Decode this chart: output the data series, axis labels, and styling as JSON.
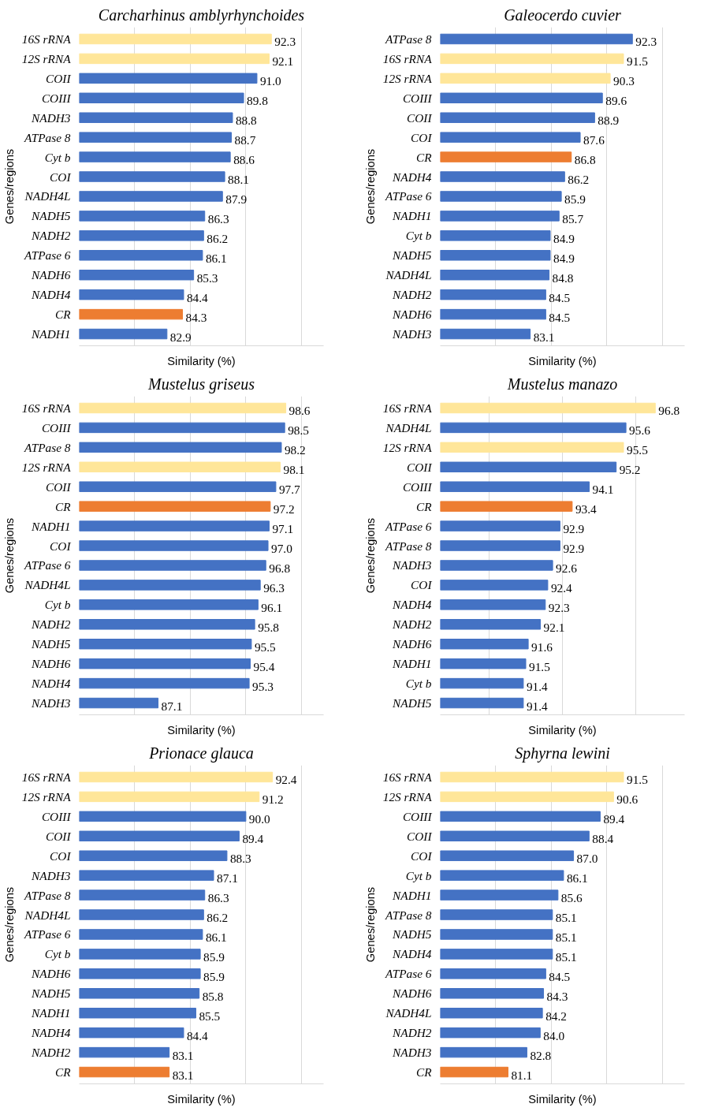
{
  "chart_data": [
    {
      "type": "bar",
      "orientation": "horizontal",
      "title": "Carcharhinus amblyrhynchoides",
      "xlabel": "Similarity (%)",
      "ylabel": "Genes/regions",
      "categories": [
        "16S rRNA",
        "12S rRNA",
        "COII",
        "COIII",
        "NADH3",
        "ATPase 8",
        "Cyt b",
        "COI",
        "NADH4L",
        "NADH5",
        "NADH2",
        "ATPase 6",
        "NADH6",
        "NADH4",
        "CR",
        "NADH1"
      ],
      "values": [
        92.3,
        92.1,
        91.0,
        89.8,
        88.8,
        88.7,
        88.6,
        88.1,
        87.9,
        86.3,
        86.2,
        86.1,
        85.3,
        84.4,
        84.3,
        82.9
      ],
      "value_labels": [
        "92.3",
        "92.1",
        "91.0",
        "89.8",
        "88.8",
        "88.7",
        "88.6",
        "88.1",
        "87.9",
        "86.3",
        "86.2",
        "86.1",
        "85.3",
        "84.4",
        "84.3",
        "82.9"
      ],
      "colors": [
        "#ffe699",
        "#ffe699",
        "#4472c4",
        "#4472c4",
        "#4472c4",
        "#4472c4",
        "#4472c4",
        "#4472c4",
        "#4472c4",
        "#4472c4",
        "#4472c4",
        "#4472c4",
        "#4472c4",
        "#4472c4",
        "#ed7d31",
        "#4472c4"
      ],
      "xlim": [
        75,
        97
      ],
      "xticks": [
        {
          "value": 80,
          "label": null
        },
        {
          "value": 85,
          "label": null
        },
        {
          "value": 90,
          "label": null
        },
        {
          "value": 95,
          "label": null
        }
      ],
      "grid": "x",
      "tick_labels": "y"
    },
    {
      "type": "bar",
      "orientation": "horizontal",
      "title": "Galeocerdo cuvier",
      "xlabel": "Similarity (%)",
      "ylabel": "Genes/regions",
      "categories": [
        "ATPase 8",
        "16S rRNA",
        "12S rRNA",
        "COIII",
        "COII",
        "COI",
        "CR",
        "NADH4",
        "ATPase 6",
        "NADH1",
        "Cyt b",
        "NADH5",
        "NADH4L",
        "NADH2",
        "NADH6",
        "NADH3"
      ],
      "values": [
        92.3,
        91.5,
        90.3,
        89.6,
        88.9,
        87.6,
        86.8,
        86.2,
        85.9,
        85.7,
        84.9,
        84.9,
        84.8,
        84.5,
        84.5,
        83.1
      ],
      "value_labels": [
        "92.3",
        "91.5",
        "90.3",
        "89.6",
        "88.9",
        "87.6",
        "86.8",
        "86.2",
        "85.9",
        "85.7",
        "84.9",
        "84.9",
        "84.8",
        "84.5",
        "84.5",
        "83.1"
      ],
      "colors": [
        "#4472c4",
        "#ffe699",
        "#ffe699",
        "#4472c4",
        "#4472c4",
        "#4472c4",
        "#ed7d31",
        "#4472c4",
        "#4472c4",
        "#4472c4",
        "#4472c4",
        "#4472c4",
        "#4472c4",
        "#4472c4",
        "#4472c4",
        "#4472c4"
      ],
      "xlim": [
        75,
        97
      ],
      "xticks": [
        {
          "value": 80,
          "label": null
        },
        {
          "value": 85,
          "label": null
        },
        {
          "value": 90,
          "label": null
        },
        {
          "value": 95,
          "label": null
        }
      ],
      "grid": "x",
      "tick_labels": "y"
    },
    {
      "type": "bar",
      "orientation": "horizontal",
      "title": "Mustelus griseus",
      "xlabel": "Similarity (%)",
      "ylabel": "Genes/regions",
      "categories": [
        "16S rRNA",
        "COIII",
        "ATPase 8",
        "12S rRNA",
        "COII",
        "CR",
        "NADH1",
        "COI",
        "ATPase 6",
        "NADH4L",
        "Cyt b",
        "NADH2",
        "NADH5",
        "NADH6",
        "NADH4",
        "NADH3"
      ],
      "values": [
        98.6,
        98.5,
        98.2,
        98.1,
        97.7,
        97.2,
        97.1,
        97.0,
        96.8,
        96.3,
        96.1,
        95.8,
        95.5,
        95.4,
        95.3,
        87.1
      ],
      "value_labels": [
        "98.6",
        "98.5",
        "98.2",
        "98.1",
        "97.7",
        "97.2",
        "97.1",
        "97.0",
        "96.8",
        "96.3",
        "96.1",
        "95.8",
        "95.5",
        "95.4",
        "95.3",
        "87.1"
      ],
      "colors": [
        "#ffe699",
        "#4472c4",
        "#4472c4",
        "#ffe699",
        "#4472c4",
        "#ed7d31",
        "#4472c4",
        "#4472c4",
        "#4472c4",
        "#4472c4",
        "#4472c4",
        "#4472c4",
        "#4472c4",
        "#4472c4",
        "#4472c4",
        "#4472c4"
      ],
      "xlim": [
        80,
        102
      ],
      "xticks": [
        {
          "value": 85,
          "label": null
        },
        {
          "value": 90,
          "label": null
        },
        {
          "value": 95,
          "label": null
        },
        {
          "value": 100,
          "label": null
        }
      ],
      "grid": "x",
      "tick_labels": "y"
    },
    {
      "type": "bar",
      "orientation": "horizontal",
      "title": "Mustelus manazo",
      "xlabel": "Similarity (%)",
      "ylabel": "Genes/regions",
      "categories": [
        "16S rRNA",
        "NADH4L",
        "12S rRNA",
        "COII",
        "COIII",
        "CR",
        "ATPase 6",
        "ATPase 8",
        "NADH3",
        "COI",
        "NADH4",
        "NADH2",
        "NADH6",
        "NADH1",
        "Cyt b",
        "NADH5"
      ],
      "values": [
        96.8,
        95.6,
        95.5,
        95.2,
        94.1,
        93.4,
        92.9,
        92.9,
        92.6,
        92.4,
        92.3,
        92.1,
        91.6,
        91.5,
        91.4,
        91.4
      ],
      "value_labels": [
        "96.8",
        "95.6",
        "95.5",
        "95.2",
        "94.1",
        "93.4",
        "92.9",
        "92.9",
        "92.6",
        "92.4",
        "92.3",
        "92.1",
        "91.6",
        "91.5",
        "91.4",
        "91.4"
      ],
      "colors": [
        "#ffe699",
        "#4472c4",
        "#ffe699",
        "#4472c4",
        "#4472c4",
        "#ed7d31",
        "#4472c4",
        "#4472c4",
        "#4472c4",
        "#4472c4",
        "#4472c4",
        "#4472c4",
        "#4472c4",
        "#4472c4",
        "#4472c4",
        "#4472c4"
      ],
      "xlim": [
        88,
        98
      ],
      "xticks": [
        {
          "value": 90,
          "label": null
        },
        {
          "value": 93,
          "label": null
        },
        {
          "value": 96,
          "label": null
        }
      ],
      "grid": "x",
      "tick_labels": "y"
    },
    {
      "type": "bar",
      "orientation": "horizontal",
      "title": "Prionace glauca",
      "xlabel": "Similarity (%)",
      "ylabel": "Genes/regions",
      "categories": [
        "16S rRNA",
        "12S rRNA",
        "COIII",
        "COII",
        "COI",
        "NADH3",
        "ATPase 8",
        "NADH4L",
        "ATPase 6",
        "Cyt b",
        "NADH6",
        "NADH5",
        "NADH1",
        "NADH4",
        "NADH2",
        "CR"
      ],
      "values": [
        92.4,
        91.2,
        90.0,
        89.4,
        88.3,
        87.1,
        86.3,
        86.2,
        86.1,
        85.9,
        85.9,
        85.8,
        85.5,
        84.4,
        83.1,
        83.1
      ],
      "value_labels": [
        "92.4",
        "91.2",
        "90.0",
        "89.4",
        "88.3",
        "87.1",
        "86.3",
        "86.2",
        "86.1",
        "85.9",
        "85.9",
        "85.8",
        "85.5",
        "84.4",
        "83.1",
        "83.1"
      ],
      "colors": [
        "#ffe699",
        "#ffe699",
        "#4472c4",
        "#4472c4",
        "#4472c4",
        "#4472c4",
        "#4472c4",
        "#4472c4",
        "#4472c4",
        "#4472c4",
        "#4472c4",
        "#4472c4",
        "#4472c4",
        "#4472c4",
        "#4472c4",
        "#ed7d31"
      ],
      "xlim": [
        75,
        97
      ],
      "xticks": [
        {
          "value": 80,
          "label": null
        },
        {
          "value": 85,
          "label": null
        },
        {
          "value": 90,
          "label": null
        },
        {
          "value": 95,
          "label": null
        }
      ],
      "grid": "x",
      "tick_labels": "y"
    },
    {
      "type": "bar",
      "orientation": "horizontal",
      "title": "Sphyrna lewini",
      "xlabel": "Similarity (%)",
      "ylabel": "Genes/regions",
      "categories": [
        "16S rRNA",
        "12S rRNA",
        "COIII",
        "COII",
        "COI",
        "Cyt b",
        "NADH1",
        "ATPase 8",
        "NADH5",
        "NADH4",
        "ATPase 6",
        "NADH6",
        "NADH4L",
        "NADH2",
        "NADH3",
        "CR"
      ],
      "values": [
        91.5,
        90.6,
        89.4,
        88.4,
        87.0,
        86.1,
        85.6,
        85.1,
        85.1,
        85.1,
        84.5,
        84.3,
        84.2,
        84.0,
        82.8,
        81.1
      ],
      "value_labels": [
        "91.5",
        "90.6",
        "89.4",
        "88.4",
        "87.0",
        "86.1",
        "85.6",
        "85.1",
        "85.1",
        "85.1",
        "84.5",
        "84.3",
        "84.2",
        "84.0",
        "82.8",
        "81.1"
      ],
      "colors": [
        "#ffe699",
        "#ffe699",
        "#4472c4",
        "#4472c4",
        "#4472c4",
        "#4472c4",
        "#4472c4",
        "#4472c4",
        "#4472c4",
        "#4472c4",
        "#4472c4",
        "#4472c4",
        "#4472c4",
        "#4472c4",
        "#4472c4",
        "#ed7d31"
      ],
      "xlim": [
        75,
        97
      ],
      "xticks": [
        {
          "value": 80,
          "label": null
        },
        {
          "value": 85,
          "label": null
        },
        {
          "value": 90,
          "label": null
        },
        {
          "value": 95,
          "label": null
        }
      ],
      "grid": "x",
      "tick_labels": "y"
    }
  ]
}
